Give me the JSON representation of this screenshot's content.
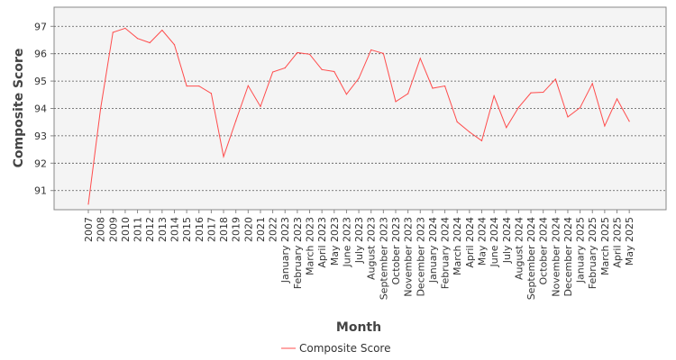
{
  "chart_data": {
    "type": "line",
    "xlabel": "Month",
    "ylabel": "Composite Score",
    "ylim": [
      90.3,
      97.7
    ],
    "yticks": [
      91,
      92,
      93,
      94,
      95,
      96,
      97
    ],
    "grid": "horizontal dashed",
    "legend_position": "bottom-center",
    "colors": {
      "line": "#ff4c4c",
      "plot_bg": "#f4f4f4",
      "grid": "#555555"
    },
    "x": [
      "2007",
      "2008",
      "2009",
      "2010",
      "2011",
      "2012",
      "2013",
      "2014",
      "2015",
      "2016",
      "2017",
      "2018",
      "2019",
      "2020",
      "2021",
      "2022",
      "January 2023",
      "February 2023",
      "March 2023",
      "April 2023",
      "May 2023",
      "June 2023",
      "July 2023",
      "August 2023",
      "September 2023",
      "October 2023",
      "November 2023",
      "December 2023",
      "January 2024",
      "February 2024",
      "March 2024",
      "April 2024",
      "May 2024",
      "June 2024",
      "July 2024",
      "August 2024",
      "September 2024",
      "October 2024",
      "November 2024",
      "December 2024",
      "January 2025",
      "February 2025",
      "March 2025",
      "April 2025",
      "May 2025"
    ],
    "series": [
      {
        "name": "Composite Score",
        "values": [
          90.5,
          94.0,
          96.78,
          96.93,
          96.56,
          96.4,
          96.86,
          96.33,
          94.82,
          94.82,
          94.55,
          92.24,
          93.55,
          94.83,
          94.07,
          95.33,
          95.48,
          96.04,
          95.98,
          95.42,
          95.35,
          94.52,
          95.1,
          96.14,
          96.01,
          94.25,
          94.54,
          95.83,
          94.74,
          94.82,
          93.51,
          93.14,
          92.82,
          94.46,
          93.3,
          94.04,
          94.57,
          94.59,
          95.07,
          93.69,
          94.03,
          94.91,
          93.36,
          94.35,
          93.53
        ]
      }
    ]
  }
}
